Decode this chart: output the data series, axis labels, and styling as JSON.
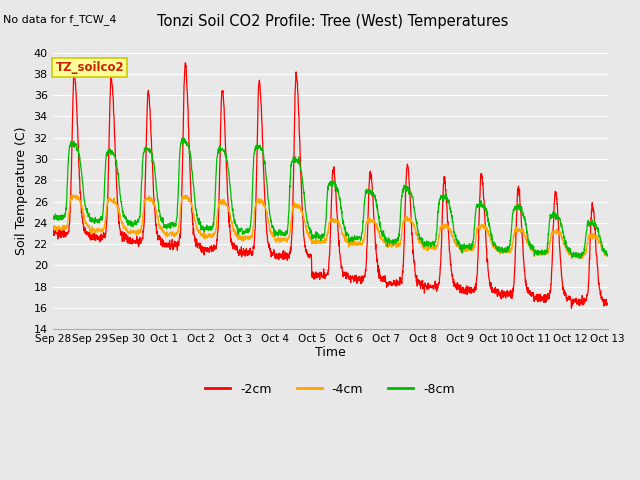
{
  "title": "Tonzi Soil CO2 Profile: Tree (West) Temperatures",
  "no_data_label": "No data for f_TCW_4",
  "ylabel": "Soil Temperature (C)",
  "xlabel": "Time",
  "ylim": [
    14,
    40
  ],
  "yticks": [
    14,
    16,
    18,
    20,
    22,
    24,
    26,
    28,
    30,
    32,
    34,
    36,
    38,
    40
  ],
  "background_color": "#e8e8e8",
  "grid_color": "#ffffff",
  "legend_label": "TZ_soilco2",
  "legend_box_color": "#ffff99",
  "legend_box_edge": "#cccc00",
  "color_red": "#ff0000",
  "color_orange": "#ffa500",
  "color_green": "#00bb00",
  "line_labels": [
    "-2cm",
    "-4cm",
    "-8cm"
  ],
  "x_tick_labels": [
    "Sep 28",
    "Sep 29",
    "Sep 30",
    "Oct 1",
    "Oct 2",
    "Oct 3",
    "Oct 4",
    "Oct 5",
    "Oct 6",
    "Oct 7",
    "Oct 8",
    "Oct 9",
    "Oct 10",
    "Oct 11",
    "Oct 12",
    "Oct 13"
  ]
}
